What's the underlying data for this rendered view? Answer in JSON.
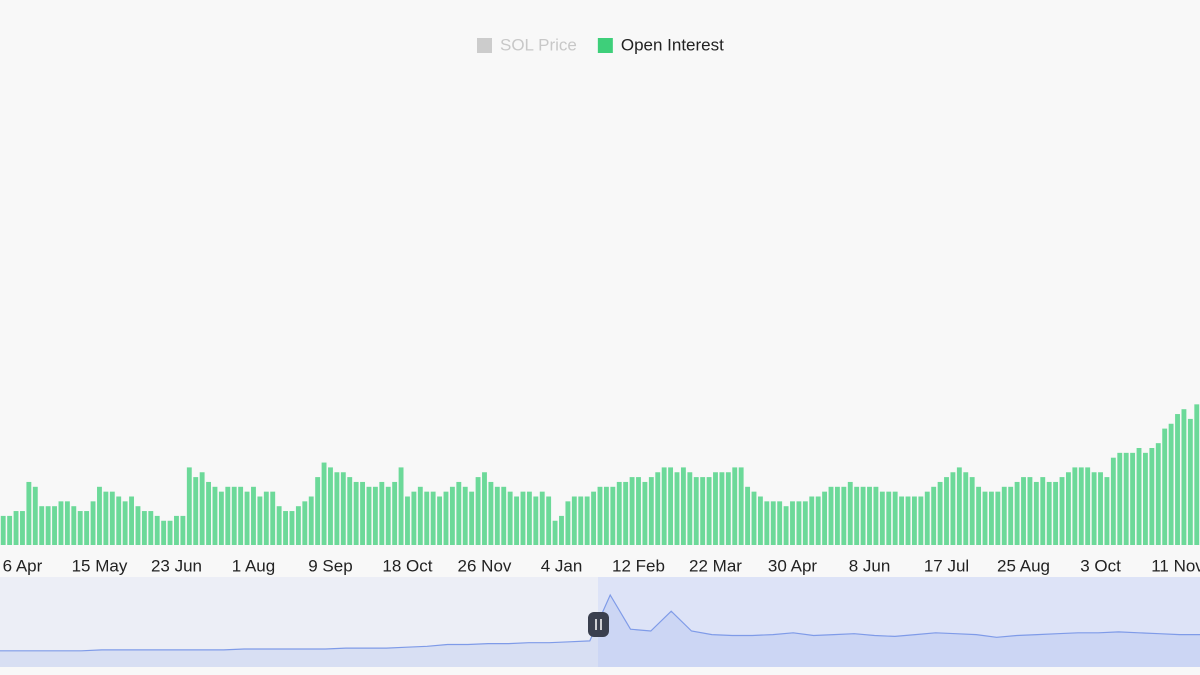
{
  "chart_data": [
    {
      "type": "bar",
      "series": [
        {
          "name": "SOL Price",
          "color": "#cccccc",
          "visible": false
        },
        {
          "name": "Open Interest",
          "color": "#3ecf7a",
          "visible": true,
          "values": [
            6,
            6,
            7,
            7,
            13,
            12,
            8,
            8,
            8,
            9,
            9,
            8,
            7,
            7,
            9,
            12,
            11,
            11,
            10,
            9,
            10,
            8,
            7,
            7,
            6,
            5,
            5,
            6,
            6,
            16,
            14,
            15,
            13,
            12,
            11,
            12,
            12,
            12,
            11,
            12,
            10,
            11,
            11,
            8,
            7,
            7,
            8,
            9,
            10,
            14,
            17,
            16,
            15,
            15,
            14,
            13,
            13,
            12,
            12,
            13,
            12,
            13,
            16,
            10,
            11,
            12,
            11,
            11,
            10,
            11,
            12,
            13,
            12,
            11,
            14,
            15,
            13,
            12,
            12,
            11,
            10,
            11,
            11,
            10,
            11,
            10,
            5,
            6,
            9,
            10,
            10,
            10,
            11,
            12,
            12,
            12,
            13,
            13,
            14,
            14,
            13,
            14,
            15,
            16,
            16,
            15,
            16,
            15,
            14,
            14,
            14,
            15,
            15,
            15,
            16,
            16,
            12,
            11,
            10,
            9,
            9,
            9,
            8,
            9,
            9,
            9,
            10,
            10,
            11,
            12,
            12,
            12,
            13,
            12,
            12,
            12,
            12,
            11,
            11,
            11,
            10,
            10,
            10,
            10,
            11,
            12,
            13,
            14,
            15,
            16,
            15,
            14,
            12,
            11,
            11,
            11,
            12,
            12,
            13,
            14,
            14,
            13,
            14,
            13,
            13,
            14,
            15,
            16,
            16,
            16,
            15,
            15,
            14,
            18,
            19,
            19,
            19,
            20,
            19,
            20,
            21,
            24,
            25,
            27,
            28,
            26,
            29
          ]
        }
      ],
      "categories": [
        null,
        null,
        null,
        "6 Apr",
        null,
        null,
        null,
        null,
        null,
        null,
        null,
        null,
        null,
        null,
        null,
        "15 May",
        null,
        null,
        null,
        null,
        null,
        null,
        null,
        null,
        null,
        null,
        null,
        "23 Jun",
        null,
        null,
        null,
        null,
        null,
        null,
        null,
        null,
        null,
        null,
        null,
        "1 Aug",
        null,
        null,
        null,
        null,
        null,
        null,
        null,
        null,
        null,
        null,
        null,
        "9 Sep",
        null,
        null,
        null,
        null,
        null,
        null,
        null,
        null,
        null,
        null,
        null,
        "18 Oct",
        null,
        null,
        null,
        null,
        null,
        null,
        null,
        null,
        null,
        null,
        null,
        "26 Nov",
        null,
        null,
        null,
        null,
        null,
        null,
        null,
        null,
        null,
        null,
        null,
        "4 Jan",
        null,
        null,
        null,
        null,
        null,
        null,
        null,
        null,
        null,
        null,
        null,
        "12 Feb",
        null,
        null,
        null,
        null,
        null,
        null,
        null,
        null,
        null,
        null,
        null,
        "22 Mar",
        null,
        null,
        null,
        null,
        null,
        null,
        null,
        null,
        null,
        null,
        null,
        "30 Apr",
        null,
        null,
        null,
        null,
        null,
        null,
        null,
        null,
        null,
        null,
        null,
        "8 Jun",
        null,
        null,
        null,
        null,
        null,
        null,
        null,
        null,
        null,
        null,
        null,
        "17 Jul",
        null,
        null,
        null,
        null,
        null,
        null,
        null,
        null,
        null,
        null,
        null,
        "25 Aug",
        null,
        null,
        null,
        null,
        null,
        null,
        null,
        null,
        null,
        null,
        null,
        "3 Oct",
        null,
        null,
        null,
        null,
        null,
        null,
        null,
        null,
        null,
        null,
        null,
        "11 Nov",
        null,
        null,
        null
      ],
      "ylim": [
        0,
        100
      ]
    },
    {
      "type": "area",
      "color": "#7f9be8",
      "values": [
        18,
        18,
        18,
        18,
        18,
        19,
        19,
        19,
        19,
        19,
        19,
        19,
        20,
        20,
        20,
        20,
        20,
        21,
        21,
        21,
        22,
        23,
        25,
        25,
        26,
        26,
        27,
        27,
        28,
        29,
        80,
        42,
        40,
        62,
        40,
        36,
        35,
        35,
        36,
        38,
        35,
        36,
        37,
        35,
        34,
        36,
        38,
        37,
        36,
        33,
        35,
        36,
        37,
        38,
        38,
        39,
        38,
        37,
        36,
        36
      ],
      "ylim": [
        0,
        100
      ]
    }
  ]
}
